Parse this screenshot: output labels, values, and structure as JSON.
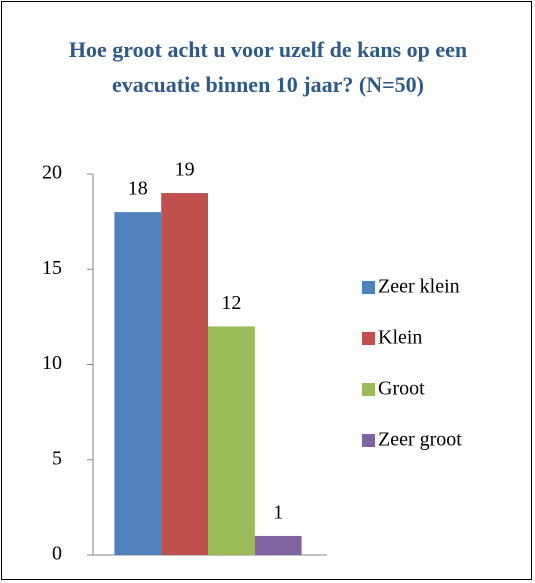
{
  "chart_data": {
    "type": "bar",
    "title": "Hoe groot acht u voor uzelf de kans op een evacuatie binnen 10 jaar? (N=50)",
    "categories": [
      null
    ],
    "series": [
      {
        "name": "Zeer klein",
        "color": "#4f81bd",
        "values": [
          18
        ]
      },
      {
        "name": "Klein",
        "color": "#c0504d",
        "values": [
          19
        ]
      },
      {
        "name": "Groot",
        "color": "#9bbb59",
        "values": [
          12
        ]
      },
      {
        "name": "Zeer groot",
        "color": "#8064a2",
        "values": [
          1
        ]
      }
    ],
    "ylim": [
      0,
      20
    ],
    "yticks": [
      0,
      5,
      10,
      15,
      20
    ],
    "grid": false,
    "legend": "right"
  }
}
